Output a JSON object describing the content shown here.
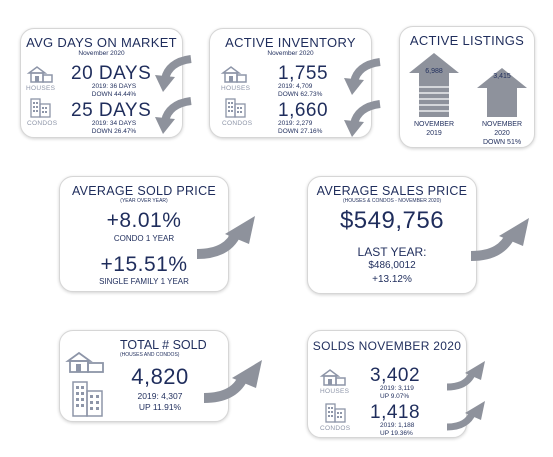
{
  "avg_days": {
    "title": "AVG DAYS ON MARKET",
    "subtitle": "November 2020",
    "houses_label": "HOUSES",
    "houses_value": "20 DAYS",
    "houses_prev": "2019: 36 DAYS",
    "houses_change": "DOWN 44.44%",
    "condos_label": "CONDOS",
    "condos_value": "25 DAYS",
    "condos_prev": "2019: 34 DAYS",
    "condos_change": "DOWN 26.47%"
  },
  "active_inventory": {
    "title": "ACTIVE INVENTORY",
    "subtitle": "November 2020",
    "houses_label": "HOUSES",
    "houses_value": "1,755",
    "houses_prev": "2019: 4,709",
    "houses_change": "DOWN 62.73%",
    "condos_label": "CONDOS",
    "condos_value": "1,660",
    "condos_prev": "2019: 2,279",
    "condos_change": "DOWN 27.16%"
  },
  "active_listings": {
    "title": "ACTIVE LISTINGS",
    "left_value": "6,988",
    "left_label_1": "NOVEMBER",
    "left_label_2": "2019",
    "right_value": "3,415",
    "right_label_1": "NOVEMBER",
    "right_label_2": "2020",
    "right_change": "DOWN 51%"
  },
  "avg_sold_price": {
    "title": "AVERAGE SOLD PRICE",
    "subtitle": "(YEAR OVER YEAR)",
    "condo_value": "+8.01%",
    "condo_label": "CONDO 1 YEAR",
    "sf_value": "+15.51%",
    "sf_label": "SINGLE FAMILY 1 YEAR"
  },
  "avg_sales_price": {
    "title": "AVERAGE SALES PRICE",
    "subtitle": "(HOUSES & CONDOS - NOVEMBER 2020)",
    "value": "$549,756",
    "last_year_label": "LAST YEAR:",
    "last_year_value": "$486,0012",
    "change": "+13.12%"
  },
  "total_sold": {
    "title": "TOTAL # SOLD",
    "subtitle": "(HOUSES AND CONDOS)",
    "value": "4,820",
    "prev": "2019: 4,307",
    "change": "UP 11.91%"
  },
  "solds_nov": {
    "title": "SOLDS NOVEMBER 2020",
    "houses_label": "HOUSES",
    "houses_value": "3,402",
    "houses_prev": "2019: 3,119",
    "houses_change": "UP 9.07%",
    "condos_label": "CONDOS",
    "condos_value": "1,418",
    "condos_prev": "2019: 1,188",
    "condos_change": "UP 19.36%"
  },
  "colors": {
    "navy": "#1f2d5c",
    "arrow_gray": "#8e929c",
    "label_gray": "#8d95a8"
  },
  "icons": [
    "house-icon",
    "condo-building-icon",
    "curved-arrow-down-icon",
    "curved-arrow-up-icon",
    "up-arrow-icon"
  ]
}
